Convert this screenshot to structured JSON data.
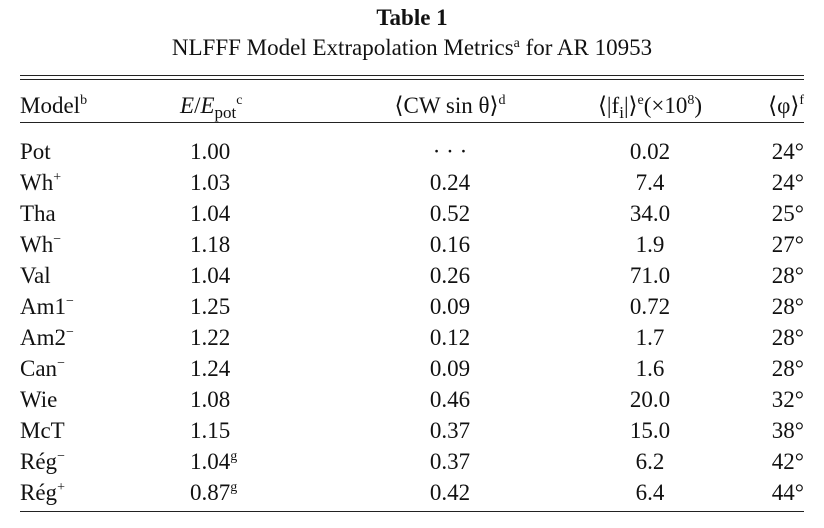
{
  "title": "Table 1",
  "caption": {
    "text": "NLFFF Model Extrapolation Metrics",
    "marker": "a",
    "suffix": " for AR 10953"
  },
  "headers": {
    "model": "Model",
    "model_marker": "b",
    "e_num": "E",
    "e_slash": "/",
    "e_den": "E",
    "e_sub": "pot",
    "e_marker": "c",
    "cw": "⟨CW sin θ⟩",
    "cw_marker": "d",
    "f": "⟨|f",
    "f_sub": "i",
    "f_tail": "|⟩",
    "f_marker": "e",
    "f_scale": "(×10",
    "f_exp": "8",
    "f_close": ")",
    "phi": "⟨φ⟩",
    "phi_marker": "f"
  },
  "rows": [
    {
      "model": "Pot",
      "model_sup": "",
      "e": "1.00",
      "e_sup": "",
      "cw": "· · ·",
      "f": "0.02",
      "phi": "24°"
    },
    {
      "model": "Wh",
      "model_sup": "+",
      "e": "1.03",
      "e_sup": "",
      "cw": "0.24",
      "f": "7.4",
      "phi": "24°"
    },
    {
      "model": "Tha",
      "model_sup": "",
      "e": "1.04",
      "e_sup": "",
      "cw": "0.52",
      "f": "34.0",
      "phi": "25°"
    },
    {
      "model": "Wh",
      "model_sup": "−",
      "e": "1.18",
      "e_sup": "",
      "cw": "0.16",
      "f": "1.9",
      "phi": "27°"
    },
    {
      "model": "Val",
      "model_sup": "",
      "e": "1.04",
      "e_sup": "",
      "cw": "0.26",
      "f": "71.0",
      "phi": "28°"
    },
    {
      "model": "Am1",
      "model_sup": "−",
      "e": "1.25",
      "e_sup": "",
      "cw": "0.09",
      "f": "0.72",
      "phi": "28°"
    },
    {
      "model": "Am2",
      "model_sup": "−",
      "e": "1.22",
      "e_sup": "",
      "cw": "0.12",
      "f": "1.7",
      "phi": "28°"
    },
    {
      "model": "Can",
      "model_sup": "−",
      "e": "1.24",
      "e_sup": "",
      "cw": "0.09",
      "f": "1.6",
      "phi": "28°"
    },
    {
      "model": "Wie",
      "model_sup": "",
      "e": "1.08",
      "e_sup": "",
      "cw": "0.46",
      "f": "20.0",
      "phi": "32°"
    },
    {
      "model": "McT",
      "model_sup": "",
      "e": "1.15",
      "e_sup": "",
      "cw": "0.37",
      "f": "15.0",
      "phi": "38°"
    },
    {
      "model": "Rég",
      "model_sup": "−",
      "e": "1.04",
      "e_sup": "g",
      "cw": "0.37",
      "f": "6.2",
      "phi": "42°"
    },
    {
      "model": "Rég",
      "model_sup": "+",
      "e": "0.87",
      "e_sup": "g",
      "cw": "0.42",
      "f": "6.4",
      "phi": "44°"
    }
  ]
}
